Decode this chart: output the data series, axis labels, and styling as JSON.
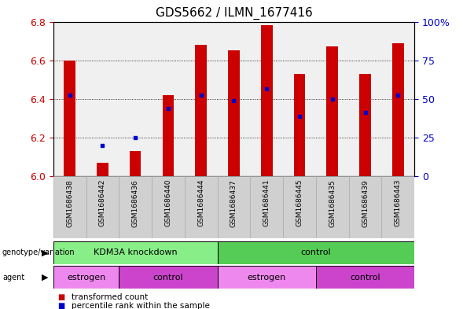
{
  "title": "GDS5662 / ILMN_1677416",
  "samples": [
    "GSM1686438",
    "GSM1686442",
    "GSM1686436",
    "GSM1686440",
    "GSM1686444",
    "GSM1686437",
    "GSM1686441",
    "GSM1686445",
    "GSM1686435",
    "GSM1686439",
    "GSM1686443"
  ],
  "transformed_counts": [
    6.6,
    6.07,
    6.13,
    6.42,
    6.68,
    6.65,
    6.78,
    6.53,
    6.67,
    6.53,
    6.69
  ],
  "percentile_values": [
    6.42,
    6.16,
    6.2,
    6.35,
    6.42,
    6.39,
    6.45,
    6.31,
    6.4,
    6.33,
    6.42
  ],
  "ylim_left": [
    6.0,
    6.8
  ],
  "ylim_right": [
    0,
    100
  ],
  "yticks_left": [
    6.0,
    6.2,
    6.4,
    6.6,
    6.8
  ],
  "yticks_right": [
    0,
    25,
    50,
    75,
    100
  ],
  "yticklabels_right": [
    "0",
    "25",
    "50",
    "75",
    "100%"
  ],
  "bar_color": "#cc0000",
  "percentile_color": "#0000cc",
  "bar_width": 0.35,
  "genotype_groups": [
    {
      "label": "KDM3A knockdown",
      "start": 0,
      "end": 5,
      "color": "#88ee88"
    },
    {
      "label": "control",
      "start": 5,
      "end": 11,
      "color": "#55cc55"
    }
  ],
  "agent_groups": [
    {
      "label": "estrogen",
      "start": 0,
      "end": 2,
      "color": "#ee88ee"
    },
    {
      "label": "control",
      "start": 2,
      "end": 5,
      "color": "#cc44cc"
    },
    {
      "label": "estrogen",
      "start": 5,
      "end": 8,
      "color": "#ee88ee"
    },
    {
      "label": "control",
      "start": 8,
      "end": 11,
      "color": "#cc44cc"
    }
  ],
  "legend_items": [
    {
      "label": "transformed count",
      "color": "#cc0000"
    },
    {
      "label": "percentile rank within the sample",
      "color": "#0000cc"
    }
  ],
  "tick_label_color_left": "#cc0000",
  "tick_label_color_right": "#0000cc",
  "plot_bg": "#f0f0f0"
}
